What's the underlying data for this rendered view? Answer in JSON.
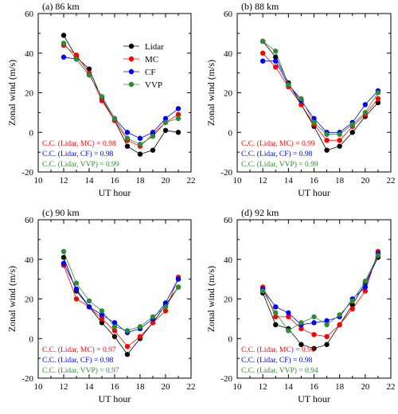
{
  "chart_data": [
    {
      "type": "line",
      "title": "(a) 86 km",
      "xlabel": "UT hour",
      "ylabel": "Zonal wind (m/s)",
      "xlim": [
        10,
        22
      ],
      "ylim": [
        -20,
        60
      ],
      "xticks": [
        "10",
        "12",
        "14",
        "16",
        "18",
        "20",
        "22"
      ],
      "yticks": [
        "-20",
        "0",
        "20",
        "40",
        "60"
      ],
      "x": [
        12,
        13,
        14,
        15,
        16,
        17,
        18,
        19,
        20,
        21
      ],
      "legend": "upper-right",
      "series": [
        {
          "name": "Lidar",
          "color": "#000000",
          "values": [
            49,
            38,
            32,
            17,
            6,
            -7,
            -11,
            -9,
            1,
            0
          ]
        },
        {
          "name": "MC",
          "color": "#ff0000",
          "values": [
            44,
            39,
            30,
            16,
            6,
            -4,
            -7,
            -1,
            5,
            9
          ]
        },
        {
          "name": "CF",
          "color": "#0000ff",
          "values": [
            38,
            37,
            29,
            18,
            7,
            0,
            -3,
            0,
            7,
            12
          ]
        },
        {
          "name": "VVP",
          "color": "#2e8b35",
          "values": [
            45,
            37,
            29,
            18,
            7,
            -3,
            -6,
            -2,
            5,
            7
          ]
        }
      ],
      "annotations": [
        {
          "text": "C.C. (Lidar, MC) = 0.98",
          "color": "#ff0000"
        },
        {
          "text": "C.C. (Lidar, CF) = 0.98",
          "color": "#0000ff"
        },
        {
          "text": "C.C. (Lidar, VVP) = 0.99",
          "color": "#2e8b35"
        }
      ]
    },
    {
      "type": "line",
      "title": "(b) 88 km",
      "xlabel": "UT hour",
      "ylabel": "Zonal wind (m/s)",
      "xlim": [
        10,
        22
      ],
      "ylim": [
        -20,
        60
      ],
      "xticks": [
        "10",
        "12",
        "14",
        "16",
        "18",
        "20",
        "22"
      ],
      "yticks": [
        "-20",
        "0",
        "20",
        "40",
        "60"
      ],
      "x": [
        12,
        13,
        14,
        15,
        16,
        17,
        18,
        19,
        20,
        21
      ],
      "series": [
        {
          "name": "Lidar",
          "color": "#000000",
          "values": [
            46,
            38,
            25,
            14,
            3,
            -9,
            -7,
            0,
            8,
            15
          ]
        },
        {
          "name": "MC",
          "color": "#ff0000",
          "values": [
            40,
            33,
            23,
            14,
            4,
            -4,
            -4,
            3,
            9,
            17
          ]
        },
        {
          "name": "CF",
          "color": "#0000ff",
          "values": [
            36,
            36,
            24,
            16,
            7,
            0,
            0,
            5,
            14,
            21
          ]
        },
        {
          "name": "VVP",
          "color": "#2e8b35",
          "values": [
            46,
            41,
            24,
            17,
            5,
            -1,
            -1,
            4,
            10,
            20
          ]
        }
      ],
      "annotations": [
        {
          "text": "C.C. (Lidar, MC) = 0.99",
          "color": "#ff0000"
        },
        {
          "text": "C.C. (Lidar, CF) = 0.98",
          "color": "#0000ff"
        },
        {
          "text": "C.C. (Lidar, VVP) = 0.99",
          "color": "#2e8b35"
        }
      ]
    },
    {
      "type": "line",
      "title": "(c) 90 km",
      "xlabel": "UT hour",
      "ylabel": "Zonal wind (m/s)",
      "xlim": [
        10,
        22
      ],
      "ylim": [
        -20,
        60
      ],
      "xticks": [
        "10",
        "12",
        "14",
        "16",
        "18",
        "20",
        "22"
      ],
      "yticks": [
        "-20",
        "0",
        "20",
        "40",
        "60"
      ],
      "x": [
        12,
        13,
        14,
        15,
        16,
        17,
        18,
        19,
        20,
        21
      ],
      "series": [
        {
          "name": "Lidar",
          "color": "#000000",
          "values": [
            41,
            24,
            16,
            8,
            1,
            -8,
            0,
            8,
            17,
            26
          ]
        },
        {
          "name": "MC",
          "color": "#ff0000",
          "values": [
            37,
            20,
            16,
            10,
            4,
            -4,
            1,
            8,
            14,
            31
          ]
        },
        {
          "name": "CF",
          "color": "#0000ff",
          "values": [
            38,
            25,
            16,
            12,
            8,
            3,
            5,
            10,
            18,
            30
          ]
        },
        {
          "name": "VVP",
          "color": "#2e8b35",
          "values": [
            44,
            28,
            19,
            14,
            6,
            4,
            6,
            11,
            16,
            26
          ]
        }
      ],
      "annotations": [
        {
          "text": "C.C. (Lidar, MC) = 0.97",
          "color": "#ff0000"
        },
        {
          "text": "C.C. (Lidar, CF) = 0.98",
          "color": "#0000ff"
        },
        {
          "text": "C.C. (Lidar, VVP) = 0.97",
          "color": "#2e8b35"
        }
      ]
    },
    {
      "type": "line",
      "title": "(d) 92 km",
      "xlabel": "UT hour",
      "ylabel": "Zonal wind (m/s)",
      "xlim": [
        10,
        22
      ],
      "ylim": [
        -20,
        60
      ],
      "xticks": [
        "10",
        "12",
        "14",
        "16",
        "18",
        "20",
        "22"
      ],
      "yticks": [
        "-20",
        "0",
        "20",
        "40",
        "60"
      ],
      "x": [
        12,
        13,
        14,
        15,
        16,
        17,
        18,
        19,
        20,
        21
      ],
      "series": [
        {
          "name": "Lidar",
          "color": "#000000",
          "values": [
            23,
            7,
            5,
            -3,
            -5,
            -3,
            7,
            17,
            28,
            41
          ]
        },
        {
          "name": "MC",
          "color": "#ff0000",
          "values": [
            26,
            11,
            11,
            5,
            2,
            1,
            7,
            15,
            24,
            44
          ]
        },
        {
          "name": "CF",
          "color": "#0000ff",
          "values": [
            25,
            16,
            13,
            7,
            8,
            9,
            11,
            20,
            26,
            43
          ]
        },
        {
          "name": "VVP",
          "color": "#2e8b35",
          "values": [
            24,
            13,
            4,
            8,
            11,
            7,
            12,
            19,
            29,
            42
          ]
        }
      ],
      "annotations": [
        {
          "text": "C.C. (Lidar, MC) = 0.96",
          "color": "#ff0000"
        },
        {
          "text": "C.C. (Lidar, CF) = 0.98",
          "color": "#0000ff"
        },
        {
          "text": "C.C. (Lidar, VVP) = 0.94",
          "color": "#2e8b35"
        }
      ]
    }
  ]
}
